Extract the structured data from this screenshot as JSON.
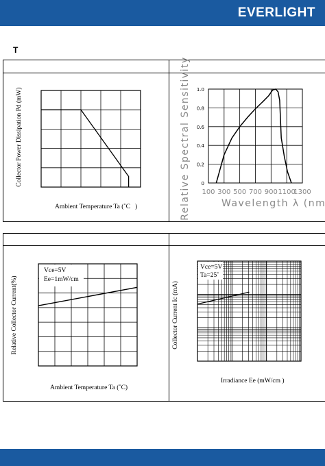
{
  "header": {
    "brand": "EVERLIGHT",
    "section_letter": "T"
  },
  "colors": {
    "brand_blue": "#1a5aa0",
    "muted_text": "#888888"
  },
  "chart_data": [
    {
      "type": "line",
      "title": "",
      "xlabel": "Ambient Temperature Ta (˚C   )",
      "ylabel": "Collector Power Dissipation Pd (mW)",
      "grid": true,
      "x_ticks": 5,
      "y_ticks": 5,
      "series": [
        {
          "points": [
            [
              0,
              0.8
            ],
            [
              0.4,
              0.8
            ],
            [
              0.88,
              0.11
            ],
            [
              0.88,
              0
            ]
          ]
        }
      ]
    },
    {
      "type": "line",
      "title": "",
      "xlabel": "Wavelength λ (nm)",
      "ylabel": "Relative Spectral Sensitivity",
      "xlim": [
        100,
        1300
      ],
      "ylim": [
        0,
        1.0
      ],
      "x_ticks": [
        "100",
        "300",
        "500",
        "700",
        "900",
        "1100",
        "1300"
      ],
      "y_ticks": [
        "0",
        "0.2",
        "0.4",
        "0.6",
        "0.8",
        "1.0"
      ],
      "grid": true,
      "series": [
        {
          "x": [
            200,
            300,
            400,
            500,
            600,
            700,
            800,
            870,
            920,
            960,
            990,
            1010,
            1030,
            1070,
            1110,
            1160
          ],
          "y": [
            0,
            0.3,
            0.48,
            0.6,
            0.7,
            0.79,
            0.87,
            0.93,
            0.99,
            1.0,
            0.97,
            0.88,
            0.48,
            0.28,
            0.12,
            0
          ]
        }
      ]
    },
    {
      "type": "line",
      "title": "",
      "xlabel": "Ambient Temperature Ta (˚C)",
      "ylabel": "Relative Collector Current(%)",
      "grid": true,
      "x_ticks": 6,
      "y_ticks": 7,
      "annotations": [
        "Vсе=5V",
        "Ee=1mW/cm"
      ],
      "series": [
        {
          "points": [
            [
              0,
              0.59
            ],
            [
              1,
              0.77
            ]
          ]
        }
      ]
    },
    {
      "type": "line",
      "title": "",
      "xlabel": "Irradiance Ee (mW/cm )",
      "ylabel": "Collector Current Ic (mA)",
      "grid": true,
      "scale": "log-log",
      "annotations": [
        "Vсе=5V",
        "Ta=25˚"
      ],
      "series": [
        {
          "points": [
            [
              0,
              0.57
            ],
            [
              0.5,
              0.69
            ]
          ]
        }
      ]
    }
  ]
}
